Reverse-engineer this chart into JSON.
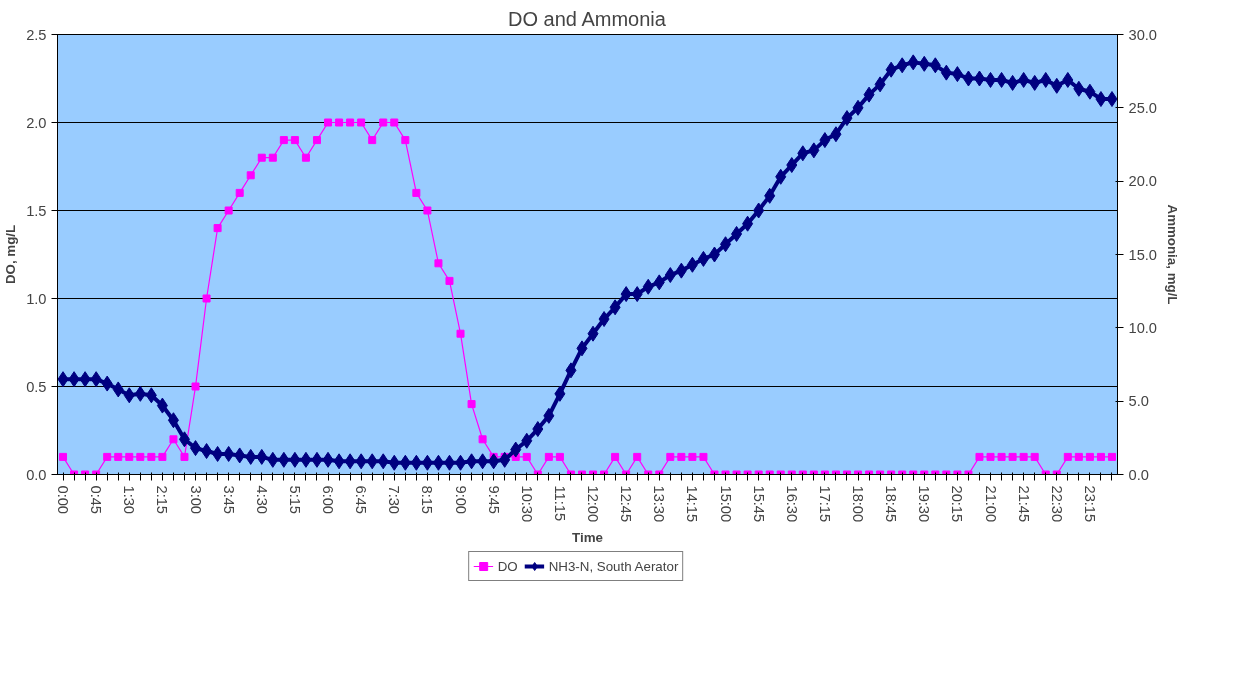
{
  "chart_data": {
    "type": "line",
    "title": "DO and Ammonia",
    "xlabel": "Time",
    "ylabel": "DO, mg/L",
    "y2label": "Ammonia, mg/L",
    "categories": [
      "0:00",
      null,
      null,
      "0:45",
      null,
      null,
      "1:30",
      null,
      null,
      "2:15",
      null,
      null,
      "3:00",
      null,
      null,
      "3:45",
      null,
      null,
      "4:30",
      null,
      null,
      "5:15",
      null,
      null,
      "6:00",
      null,
      null,
      "6:45",
      null,
      null,
      "7:30",
      null,
      null,
      "8:15",
      null,
      null,
      "9:00",
      null,
      null,
      "9:45",
      null,
      null,
      "10:30",
      null,
      null,
      "11:15",
      null,
      null,
      "12:00",
      null,
      null,
      "12:45",
      null,
      null,
      "13:30",
      null,
      null,
      "14:15",
      null,
      null,
      "15:00",
      null,
      null,
      "15:45",
      null,
      null,
      "16:30",
      null,
      null,
      "17:15",
      null,
      null,
      "18:00",
      null,
      null,
      "18:45",
      null,
      null,
      "19:30",
      null,
      null,
      "20:15",
      null,
      null,
      "21:00",
      null,
      null,
      "21:45",
      null,
      null,
      "22:30",
      null,
      null,
      "23:15",
      null,
      null
    ],
    "series": [
      {
        "name": "DO",
        "color": "#ff00ff",
        "marker": "square",
        "values": [
          0.1,
          0,
          0,
          0,
          0.1,
          0.1,
          0.1,
          0.1,
          0.1,
          0.1,
          0.2,
          0.1,
          0.5,
          1.0,
          1.4,
          1.5,
          1.6,
          1.7,
          1.8,
          1.8,
          1.9,
          1.9,
          1.8,
          1.9,
          2.0,
          2.0,
          2.0,
          2.0,
          1.9,
          2.0,
          2.0,
          1.9,
          1.6,
          1.5,
          1.2,
          1.1,
          0.8,
          0.4,
          0.2,
          0.1,
          0.1,
          0.1,
          0.1,
          0,
          0.1,
          0.1,
          0,
          0,
          0,
          0,
          0.1,
          0,
          0.1,
          0,
          0,
          0.1,
          0.1,
          0.1,
          0.1,
          0,
          0,
          0,
          0,
          0,
          0,
          0,
          0,
          0,
          0,
          0,
          0,
          0,
          0,
          0,
          0,
          0,
          0,
          0,
          0,
          0,
          0,
          0,
          0,
          0.1,
          0.1,
          0.1,
          0.1,
          0.1,
          0.1,
          0,
          0,
          0.1,
          0.1,
          0.1,
          0.1,
          0.1
        ]
      },
      {
        "name": "NH3-N, South Aerator",
        "color": "#000080",
        "marker": "diamond",
        "axis": "y2",
        "values": [
          6.5,
          6.5,
          6.5,
          6.5,
          6.2,
          5.8,
          5.4,
          5.5,
          5.4,
          4.7,
          3.7,
          2.4,
          1.8,
          1.6,
          1.4,
          1.4,
          1.3,
          1.2,
          1.2,
          1.0,
          1.0,
          1.0,
          1.0,
          1.0,
          1.0,
          0.9,
          0.9,
          0.9,
          0.9,
          0.9,
          0.8,
          0.8,
          0.8,
          0.8,
          0.8,
          0.8,
          0.8,
          0.9,
          0.9,
          0.9,
          1.0,
          1.7,
          2.3,
          3.1,
          4.0,
          5.5,
          7.1,
          8.6,
          9.6,
          10.6,
          11.4,
          12.3,
          12.3,
          12.8,
          13.1,
          13.6,
          13.9,
          14.3,
          14.7,
          15.0,
          15.7,
          16.4,
          17.1,
          18.0,
          19.0,
          20.3,
          21.1,
          21.9,
          22.1,
          22.8,
          23.2,
          24.3,
          25.0,
          25.9,
          26.6,
          27.6,
          27.9,
          28.1,
          28.0,
          27.9,
          27.4,
          27.3,
          27.0,
          27.0,
          26.9,
          26.9,
          26.7,
          26.9,
          26.7,
          26.9,
          26.5,
          26.9,
          26.3,
          26.1,
          25.6,
          25.6
        ]
      }
    ],
    "ylim": [
      0,
      2.5
    ],
    "yticks": [
      {
        "value": 0,
        "label": "0.0"
      },
      {
        "value": 0.5,
        "label": "0.5"
      },
      {
        "value": 1,
        "label": "1.0"
      },
      {
        "value": 1.5,
        "label": "1.5"
      },
      {
        "value": 2,
        "label": "2.0"
      },
      {
        "value": 2.5,
        "label": "2.5"
      }
    ],
    "y2lim": [
      0,
      30
    ],
    "y2ticks": [
      {
        "value": 0,
        "label": "0.0"
      },
      {
        "value": 5,
        "label": "5.0"
      },
      {
        "value": 10,
        "label": "10.0"
      },
      {
        "value": 15,
        "label": "15.0"
      },
      {
        "value": 20,
        "label": "20.0"
      },
      {
        "value": 25,
        "label": "25.0"
      },
      {
        "value": 30,
        "label": "30.0"
      }
    ],
    "grid": "y",
    "legend": "bottom",
    "line_style": "solid"
  }
}
